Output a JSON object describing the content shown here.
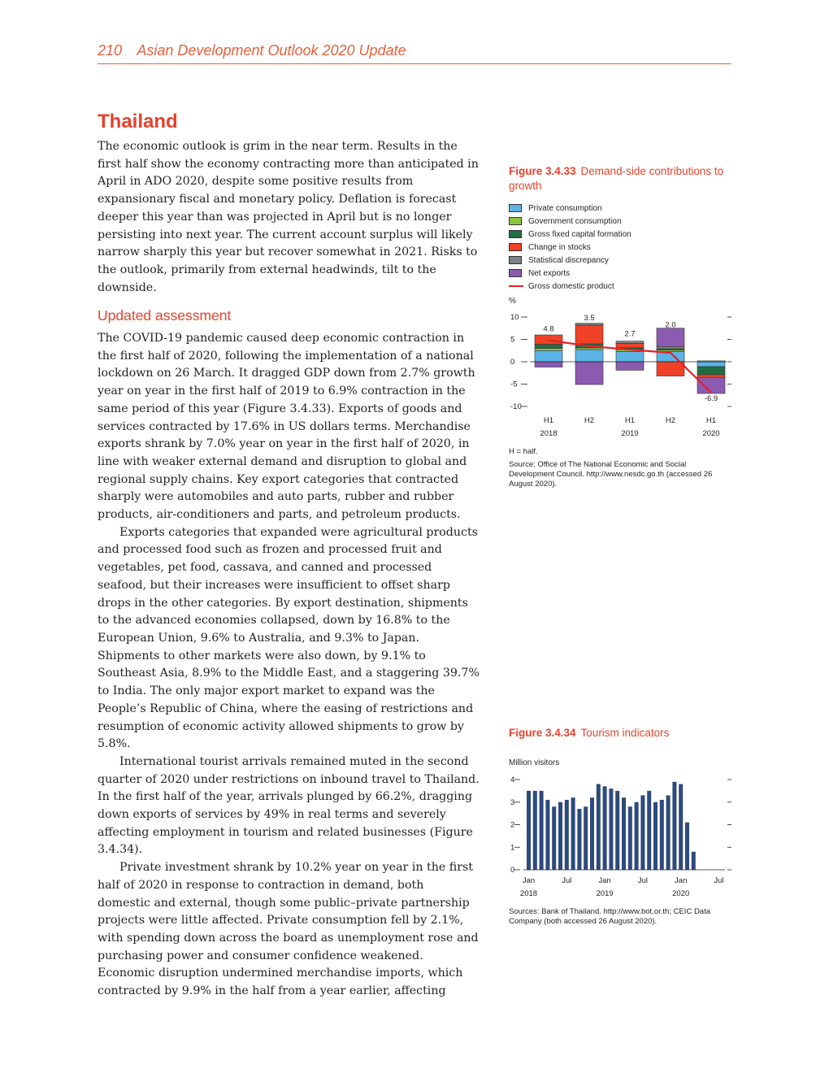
{
  "header": {
    "page_number": "210",
    "publication": "Asian Development Outlook 2020 Update"
  },
  "section_title": "Thailand",
  "intro": "The economic outlook is grim in the near term. Results in the first half show the economy contracting more than anticipated in April in ADO 2020, despite some positive results from expansionary fiscal and monetary policy. Deflation is forecast deeper this year than was projected in April but is no longer persisting into next year. The current account surplus will likely narrow sharply this year but recover somewhat in 2021. Risks to the outlook, primarily from external headwinds, tilt to the downside.",
  "subsection_title": "Updated assessment",
  "paragraphs": [
    "The COVID-19 pandemic caused deep economic contraction in the first half of 2020, following the implementation of a national lockdown on 26 March. It dragged GDP down from 2.7% growth year on year in the first half of 2019 to 6.9% contraction in the same period of this year (Figure 3.4.33). Exports of goods and services contracted by 17.6% in US dollars terms. Merchandise exports shrank by 7.0% year on year in the first half of 2020, in line with weaker external demand and disruption to global and regional supply chains. Key export categories that contracted sharply were automobiles and auto parts, rubber and rubber products, air-conditioners and parts, and petroleum products.",
    "Exports categories that expanded were agricultural products and processed food such as frozen and processed fruit and vegetables, pet food, cassava, and canned and processed seafood, but their increases were insufficient to offset sharp drops in the other categories. By export destination, shipments to the advanced economies collapsed, down by 16.8% to the European Union, 9.6% to Australia, and 9.3% to Japan. Shipments to other markets were also down, by 9.1% to Southeast Asia, 8.9% to the Middle East, and a staggering 39.7% to India. The only major export market to expand was the People’s Republic of China, where the easing of restrictions and resumption of economic activity allowed shipments to grow by 5.8%.",
    "International tourist arrivals remained muted in the second quarter of 2020 under restrictions on inbound travel to Thailand. In the first half of the year, arrivals plunged by 66.2%, dragging down exports of services by 49% in real terms and severely affecting employment in tourism and related businesses (Figure 3.4.34).",
    "Private investment shrank by 10.2% year on year in the first half of 2020 in response to contraction in demand, both domestic and external, though some public–private partnership projects were little affected. Private consumption fell by 2.1%, with spending down across the board as unemployment rose and purchasing power and consumer confidence weakened. Economic disruption undermined merchandise imports, which contracted by 9.9% in the half from a year earlier, affecting"
  ],
  "figure1": {
    "number": "Figure 3.4.33",
    "title": "Demand-side contributions to growth",
    "unit": "%",
    "note": "H = half.",
    "source": "Source: Office of The National Economic and Social Development Council. http://www.nesdc.go.th (accessed 26 August 2020).",
    "legend": [
      {
        "label": "Private consumption",
        "color": "#5bb4e5"
      },
      {
        "label": "Government consumption",
        "color": "#8dc63f"
      },
      {
        "label": "Gross fixed capital formation",
        "color": "#1f6e43"
      },
      {
        "label": "Change in stocks",
        "color": "#ee4126"
      },
      {
        "label": "Statistical discrepancy",
        "color": "#808285"
      },
      {
        "label": "Net exports",
        "color": "#8a5bb0"
      },
      {
        "label": "Gross domestic product",
        "color": "#e8202b",
        "line": true
      }
    ]
  },
  "figure2": {
    "number": "Figure 3.4.34",
    "title": "Tourism indicators",
    "unit": "Million visitors",
    "source": "Sources: Bank of Thailand. http://www.bot.or.th; CEIC Data Company (both accessed 26 August 2020)."
  },
  "chart_data": [
    {
      "type": "bar",
      "stacked": true,
      "categories": [
        "H1",
        "H2",
        "H1",
        "H2",
        "H1"
      ],
      "year_labels": [
        "2018",
        "2019",
        "2020"
      ],
      "ylim": [
        -10,
        10
      ],
      "yticks": [
        10,
        5,
        0,
        -5,
        -10
      ],
      "series": [
        {
          "name": "Private consumption",
          "color": "#5bb4e5",
          "values": [
            2.5,
            2.7,
            2.3,
            2.3,
            -1.1
          ]
        },
        {
          "name": "Government consumption",
          "color": "#8dc63f",
          "values": [
            0.5,
            0.4,
            0.4,
            0.3,
            0.2
          ]
        },
        {
          "name": "Gross fixed capital formation",
          "color": "#1f6e43",
          "values": [
            0.9,
            0.9,
            0.4,
            0.3,
            -1.8
          ]
        },
        {
          "name": "Change in stocks",
          "color": "#ee4126",
          "values": [
            2.1,
            4.2,
            1.0,
            -3.2,
            -0.6
          ]
        },
        {
          "name": "Statistical discrepancy",
          "color": "#808285",
          "values": [
            0.0,
            0.4,
            0.5,
            0.5,
            0.0
          ]
        },
        {
          "name": "Net exports",
          "color": "#8a5bb0",
          "values": [
            -1.2,
            -5.1,
            -1.9,
            4.1,
            -3.6
          ]
        }
      ],
      "gdp": {
        "name": "Gross domestic product",
        "color": "#e8202b",
        "values": [
          4.8,
          3.5,
          2.7,
          2.0,
          -6.9
        ],
        "labels": [
          "4.8",
          "3.5",
          "2.7",
          "2.0",
          "-6.9"
        ]
      }
    },
    {
      "type": "bar",
      "ylim": [
        0,
        4
      ],
      "yticks": [
        4,
        3,
        2,
        1,
        0
      ],
      "x_labels": [
        "Jan",
        "Jul",
        "Jan",
        "Jul",
        "Jan",
        "Jul"
      ],
      "year_labels": [
        "2018",
        "2019",
        "2020"
      ],
      "color": "#2e4a7d",
      "values": [
        3.5,
        3.5,
        3.5,
        3.1,
        2.8,
        3.0,
        3.1,
        3.2,
        2.7,
        2.8,
        3.2,
        3.8,
        3.7,
        3.6,
        3.5,
        3.2,
        2.8,
        3.0,
        3.3,
        3.5,
        3.0,
        3.1,
        3.3,
        3.9,
        3.8,
        2.1,
        0.8,
        0.0,
        0.0,
        0.0,
        0.0
      ]
    }
  ]
}
